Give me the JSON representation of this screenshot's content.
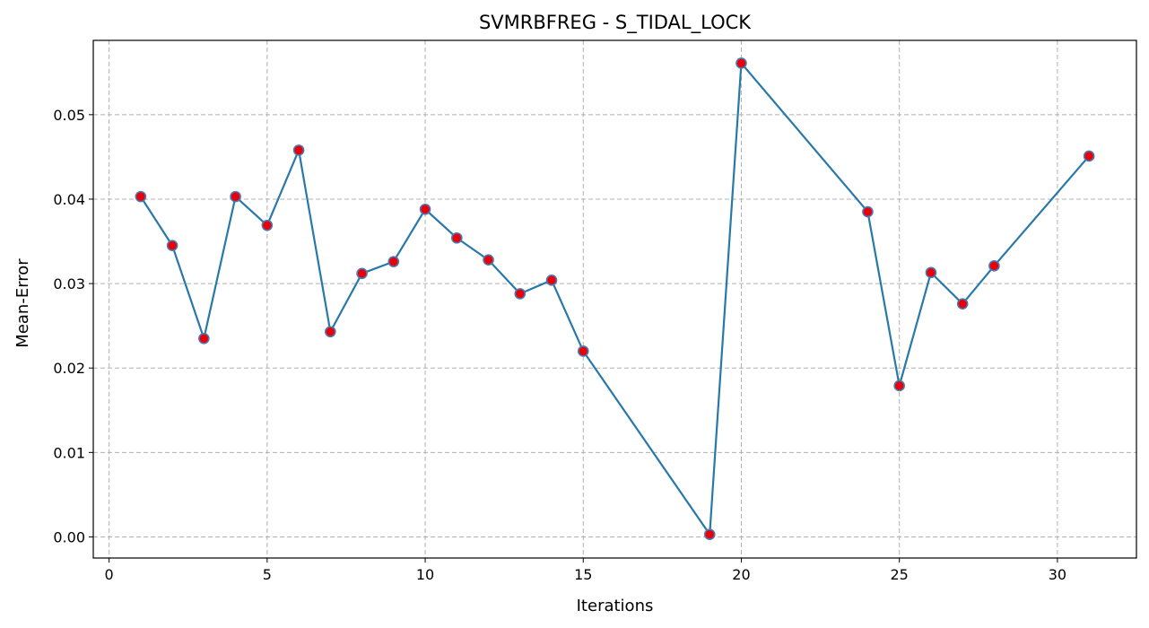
{
  "chart_data": {
    "type": "line",
    "title": "SVMRBFREG - S_TIDAL_LOCK",
    "xlabel": "Iterations",
    "ylabel": "Mean-Error",
    "xlim": [
      -0.5,
      32.5
    ],
    "ylim": [
      -0.0025,
      0.0588
    ],
    "xticks": [
      0,
      5,
      10,
      15,
      20,
      25,
      30
    ],
    "yticks": [
      0.0,
      0.01,
      0.02,
      0.03,
      0.04,
      0.05
    ],
    "ytick_labels": [
      "0.00",
      "0.01",
      "0.02",
      "0.03",
      "0.04",
      "0.05"
    ],
    "grid": true,
    "line_color": "#2878a8",
    "marker_face_color": "#e8000b",
    "marker_edge_color": "#4a7ab0",
    "series": [
      {
        "x": [
          1,
          2,
          3,
          4,
          5,
          6,
          7,
          8,
          9,
          10,
          11,
          12,
          13,
          14,
          15,
          19,
          20,
          24,
          25,
          26,
          27,
          28,
          31
        ],
        "values": [
          0.0403,
          0.0345,
          0.0235,
          0.0403,
          0.0369,
          0.0458,
          0.0243,
          0.0312,
          0.0326,
          0.0388,
          0.0354,
          0.0328,
          0.0288,
          0.0304,
          0.022,
          0.0003,
          0.0561,
          0.0385,
          0.0179,
          0.0313,
          0.0276,
          0.0321,
          0.0451
        ]
      }
    ]
  }
}
